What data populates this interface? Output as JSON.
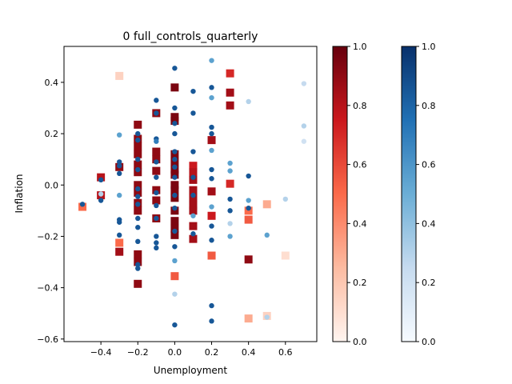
{
  "chart_data": {
    "type": "scatter",
    "title": "0 full_controls_quarterly",
    "xlabel": "Unemployment",
    "ylabel": "Inflation",
    "xlim": [
      -0.6,
      0.77
    ],
    "ylim": [
      -0.61,
      0.54
    ],
    "xticks": [
      "−0.4",
      "−0.2",
      "0.0",
      "0.2",
      "0.4",
      "0.6"
    ],
    "xtick_values": [
      -0.4,
      -0.2,
      0.0,
      0.2,
      0.4,
      0.6
    ],
    "yticks": [
      "−0.6",
      "−0.4",
      "−0.2",
      "0.0",
      "0.2",
      "0.4"
    ],
    "ytick_values": [
      -0.6,
      -0.4,
      -0.2,
      0.0,
      0.2,
      0.4
    ],
    "grid": false,
    "colorbars": [
      {
        "colormap": "Reds",
        "range": [
          0,
          1
        ],
        "ticks": [
          "0.0",
          "0.2",
          "0.4",
          "0.6",
          "0.8",
          "1.0"
        ],
        "tick_values": [
          0,
          0.2,
          0.4,
          0.6,
          0.8,
          1.0
        ]
      },
      {
        "colormap": "Blues",
        "range": [
          0,
          1
        ],
        "ticks": [
          "0.0",
          "0.2",
          "0.4",
          "0.6",
          "0.8",
          "1.0"
        ],
        "tick_values": [
          0,
          0.2,
          0.4,
          0.6,
          0.8,
          1.0
        ]
      }
    ],
    "series": [
      {
        "marker": "square",
        "colormap": "Reds",
        "points": [
          [
            -0.5,
            -0.085,
            0.5
          ],
          [
            -0.4,
            0.03,
            0.8
          ],
          [
            -0.4,
            -0.04,
            0.8
          ],
          [
            -0.3,
            0.425,
            0.15
          ],
          [
            -0.3,
            0.07,
            0.9
          ],
          [
            -0.3,
            -0.225,
            0.5
          ],
          [
            -0.3,
            -0.26,
            0.85
          ],
          [
            -0.2,
            0.235,
            0.9
          ],
          [
            -0.2,
            0.18,
            0.9
          ],
          [
            -0.2,
            0.15,
            0.9
          ],
          [
            -0.2,
            0.12,
            0.9
          ],
          [
            -0.2,
            0.08,
            0.9
          ],
          [
            -0.2,
            0.05,
            0.9
          ],
          [
            -0.2,
            0.0,
            0.9
          ],
          [
            -0.2,
            -0.03,
            0.9
          ],
          [
            -0.2,
            -0.07,
            0.9
          ],
          [
            -0.2,
            -0.1,
            0.9
          ],
          [
            -0.2,
            -0.27,
            0.9
          ],
          [
            -0.2,
            -0.3,
            0.9
          ],
          [
            -0.2,
            -0.385,
            0.9
          ],
          [
            -0.1,
            0.28,
            0.9
          ],
          [
            -0.1,
            0.13,
            0.9
          ],
          [
            -0.1,
            0.1,
            0.9
          ],
          [
            -0.1,
            0.055,
            0.9
          ],
          [
            -0.1,
            -0.02,
            0.9
          ],
          [
            -0.1,
            -0.06,
            0.9
          ],
          [
            -0.1,
            -0.13,
            0.9
          ],
          [
            0.0,
            0.38,
            0.95
          ],
          [
            0.0,
            0.265,
            0.95
          ],
          [
            0.0,
            0.25,
            0.95
          ],
          [
            0.0,
            0.12,
            0.95
          ],
          [
            0.0,
            0.09,
            0.95
          ],
          [
            0.0,
            0.06,
            0.95
          ],
          [
            0.0,
            0.04,
            0.95
          ],
          [
            0.0,
            0.0,
            0.95
          ],
          [
            0.0,
            -0.02,
            0.95
          ],
          [
            0.0,
            -0.05,
            0.95
          ],
          [
            0.0,
            -0.1,
            0.95
          ],
          [
            0.0,
            -0.14,
            0.95
          ],
          [
            0.0,
            -0.17,
            0.95
          ],
          [
            0.0,
            -0.195,
            0.95
          ],
          [
            0.0,
            -0.355,
            0.55
          ],
          [
            0.1,
            0.075,
            0.75
          ],
          [
            0.1,
            0.05,
            0.8
          ],
          [
            0.1,
            0.02,
            0.85
          ],
          [
            0.1,
            -0.02,
            0.85
          ],
          [
            0.1,
            -0.05,
            0.85
          ],
          [
            0.1,
            -0.08,
            0.85
          ],
          [
            0.1,
            -0.1,
            0.85
          ],
          [
            0.1,
            -0.16,
            0.85
          ],
          [
            0.1,
            -0.21,
            0.85
          ],
          [
            0.2,
            0.175,
            0.85
          ],
          [
            0.2,
            -0.025,
            0.85
          ],
          [
            0.2,
            -0.12,
            0.75
          ],
          [
            0.2,
            -0.275,
            0.55
          ],
          [
            0.3,
            0.435,
            0.7
          ],
          [
            0.3,
            0.36,
            0.85
          ],
          [
            0.3,
            0.31,
            0.85
          ],
          [
            0.3,
            0.005,
            0.7
          ],
          [
            0.4,
            -0.1,
            0.5
          ],
          [
            0.4,
            -0.135,
            0.55
          ],
          [
            0.4,
            -0.29,
            0.9
          ],
          [
            0.4,
            -0.52,
            0.3
          ],
          [
            0.5,
            -0.075,
            0.3
          ],
          [
            0.5,
            -0.51,
            0.15
          ],
          [
            0.6,
            -0.275,
            0.1
          ]
        ]
      },
      {
        "marker": "circle",
        "colormap": "Blues",
        "points": [
          [
            -0.5,
            -0.075,
            0.85
          ],
          [
            -0.4,
            0.02,
            0.85
          ],
          [
            -0.4,
            -0.035,
            0.3
          ],
          [
            -0.4,
            -0.06,
            0.85
          ],
          [
            -0.3,
            0.195,
            0.55
          ],
          [
            -0.3,
            0.09,
            0.85
          ],
          [
            -0.3,
            0.075,
            0.85
          ],
          [
            -0.3,
            0.045,
            0.85
          ],
          [
            -0.3,
            -0.04,
            0.55
          ],
          [
            -0.3,
            -0.135,
            0.85
          ],
          [
            -0.3,
            -0.145,
            0.85
          ],
          [
            -0.3,
            -0.195,
            0.85
          ],
          [
            -0.2,
            0.2,
            0.85
          ],
          [
            -0.2,
            0.175,
            0.85
          ],
          [
            -0.2,
            0.1,
            0.85
          ],
          [
            -0.2,
            0.06,
            0.85
          ],
          [
            -0.2,
            -0.015,
            0.85
          ],
          [
            -0.2,
            -0.045,
            0.85
          ],
          [
            -0.2,
            -0.075,
            0.85
          ],
          [
            -0.2,
            -0.13,
            0.85
          ],
          [
            -0.2,
            -0.165,
            0.85
          ],
          [
            -0.2,
            -0.22,
            0.85
          ],
          [
            -0.2,
            -0.31,
            0.85
          ],
          [
            -0.2,
            -0.325,
            0.85
          ],
          [
            -0.1,
            0.33,
            0.85
          ],
          [
            -0.1,
            0.28,
            0.85
          ],
          [
            -0.1,
            0.18,
            0.85
          ],
          [
            -0.1,
            0.17,
            0.7
          ],
          [
            -0.1,
            0.09,
            0.85
          ],
          [
            -0.1,
            0.03,
            0.85
          ],
          [
            -0.1,
            -0.03,
            0.85
          ],
          [
            -0.1,
            -0.08,
            0.85
          ],
          [
            -0.1,
            -0.13,
            0.85
          ],
          [
            -0.1,
            -0.2,
            0.85
          ],
          [
            -0.1,
            -0.225,
            0.85
          ],
          [
            -0.1,
            -0.245,
            0.85
          ],
          [
            0.0,
            0.455,
            0.85
          ],
          [
            0.0,
            0.3,
            0.85
          ],
          [
            0.0,
            0.24,
            0.85
          ],
          [
            0.0,
            0.2,
            0.85
          ],
          [
            0.0,
            0.13,
            0.85
          ],
          [
            0.0,
            0.1,
            0.85
          ],
          [
            0.0,
            0.07,
            0.85
          ],
          [
            0.0,
            0.03,
            0.85
          ],
          [
            0.0,
            -0.04,
            0.85
          ],
          [
            0.0,
            -0.09,
            0.85
          ],
          [
            0.0,
            -0.18,
            0.85
          ],
          [
            0.0,
            -0.24,
            0.85
          ],
          [
            0.0,
            -0.295,
            0.55
          ],
          [
            0.0,
            -0.425,
            0.3
          ],
          [
            0.0,
            -0.545,
            0.85
          ],
          [
            0.1,
            0.365,
            0.85
          ],
          [
            0.1,
            0.28,
            0.85
          ],
          [
            0.1,
            0.13,
            0.85
          ],
          [
            0.1,
            0.03,
            0.85
          ],
          [
            0.1,
            -0.04,
            0.85
          ],
          [
            0.1,
            -0.12,
            0.55
          ],
          [
            0.1,
            -0.19,
            0.85
          ],
          [
            0.2,
            0.485,
            0.55
          ],
          [
            0.2,
            0.38,
            0.85
          ],
          [
            0.2,
            0.34,
            0.55
          ],
          [
            0.2,
            0.225,
            0.85
          ],
          [
            0.2,
            0.2,
            0.85
          ],
          [
            0.2,
            0.135,
            0.55
          ],
          [
            0.2,
            0.06,
            0.85
          ],
          [
            0.2,
            0.025,
            0.85
          ],
          [
            0.2,
            -0.085,
            0.55
          ],
          [
            0.2,
            -0.16,
            0.85
          ],
          [
            0.2,
            -0.215,
            0.85
          ],
          [
            0.2,
            -0.47,
            0.85
          ],
          [
            0.2,
            -0.53,
            0.85
          ],
          [
            0.3,
            0.085,
            0.55
          ],
          [
            0.3,
            0.055,
            0.55
          ],
          [
            0.3,
            -0.055,
            0.85
          ],
          [
            0.3,
            -0.1,
            0.85
          ],
          [
            0.3,
            -0.15,
            0.3
          ],
          [
            0.3,
            -0.2,
            0.55
          ],
          [
            0.4,
            0.325,
            0.3
          ],
          [
            0.4,
            0.035,
            0.85
          ],
          [
            0.4,
            -0.06,
            0.55
          ],
          [
            0.4,
            -0.09,
            0.85
          ],
          [
            0.5,
            -0.195,
            0.55
          ],
          [
            0.5,
            -0.515,
            0.3
          ],
          [
            0.6,
            -0.055,
            0.3
          ],
          [
            0.7,
            0.395,
            0.25
          ],
          [
            0.7,
            0.23,
            0.3
          ],
          [
            0.7,
            0.17,
            0.2
          ]
        ]
      }
    ]
  }
}
